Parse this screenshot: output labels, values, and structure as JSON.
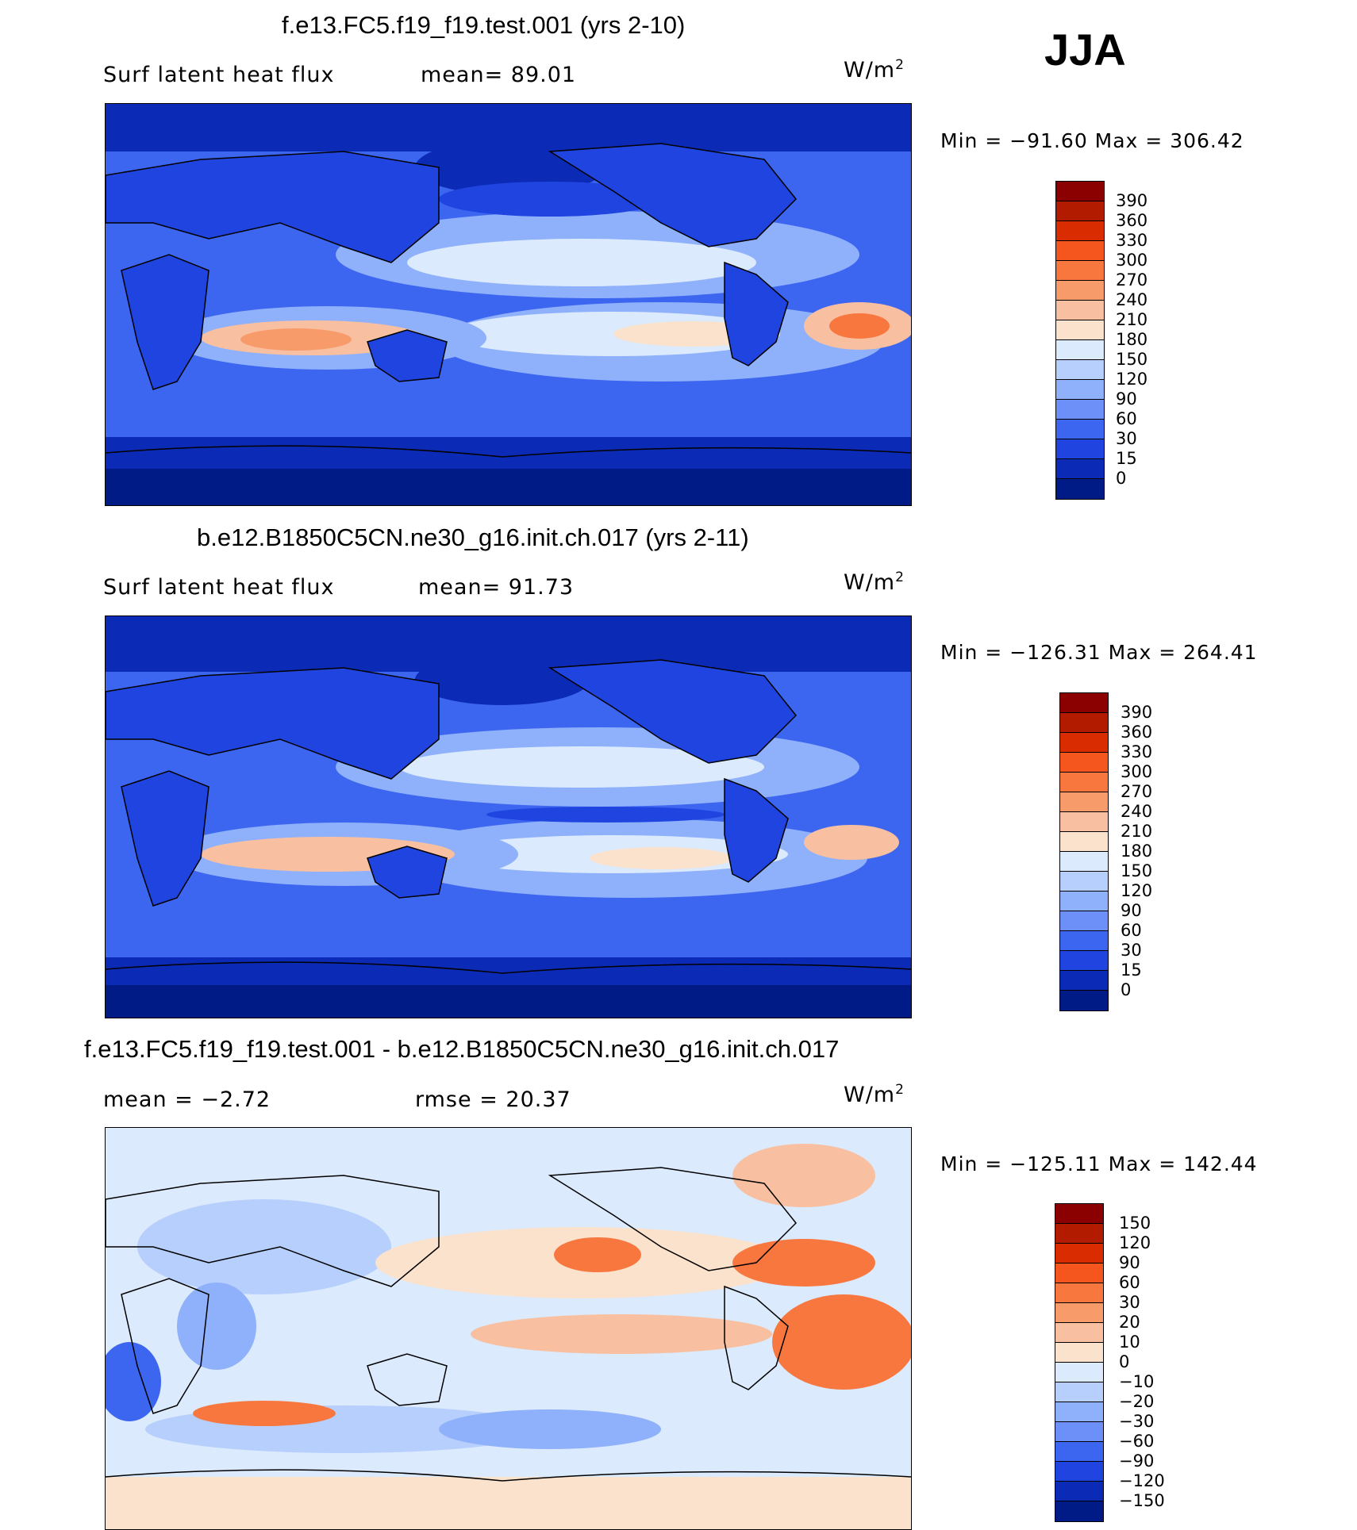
{
  "season": "JJA",
  "panels": [
    {
      "title": "f.e13.FC5.f19_f19.test.001 (yrs 2-10)",
      "variable": "Surf latent heat flux",
      "stat_text": "mean=   89.01",
      "units": "W/m",
      "units_sup": "2",
      "min_max_text": "Min  =  −91.60  Max  =  306.42",
      "colorbar_labels": [
        "390",
        "360",
        "330",
        "300",
        "270",
        "240",
        "210",
        "180",
        "150",
        "120",
        "90",
        "60",
        "30",
        "15",
        "0"
      ],
      "colorbar_colors": [
        "#8b0000",
        "#b31b00",
        "#d92c00",
        "#f4561d",
        "#f7773f",
        "#f79b6b",
        "#f8c0a0",
        "#fbe2cc",
        "#dbeafc",
        "#b7cffc",
        "#8fb0fb",
        "#6c8ff8",
        "#3d66f0",
        "#1f44df",
        "#0b2ab6",
        "#001b85"
      ]
    },
    {
      "title": "b.e12.B1850C5CN.ne30_g16.init.ch.017 (yrs 2-11)",
      "variable": "Surf latent heat flux",
      "stat_text": "mean=   91.73",
      "units": "W/m",
      "units_sup": "2",
      "min_max_text": "Min  =  −126.31  Max  =  264.41",
      "colorbar_labels": [
        "390",
        "360",
        "330",
        "300",
        "270",
        "240",
        "210",
        "180",
        "150",
        "120",
        "90",
        "60",
        "30",
        "15",
        "0"
      ],
      "colorbar_colors": [
        "#8b0000",
        "#b31b00",
        "#d92c00",
        "#f4561d",
        "#f7773f",
        "#f79b6b",
        "#f8c0a0",
        "#fbe2cc",
        "#dbeafc",
        "#b7cffc",
        "#8fb0fb",
        "#6c8ff8",
        "#3d66f0",
        "#1f44df",
        "#0b2ab6",
        "#001b85"
      ]
    },
    {
      "title": "f.e13.FC5.f19_f19.test.001 - b.e12.B1850C5CN.ne30_g16.init.ch.017",
      "stat_text": "mean  =    −2.72",
      "stat2_text": "rmse  =    20.37",
      "units": "W/m",
      "units_sup": "2",
      "min_max_text": "Min  =  −125.11  Max  =  142.44",
      "colorbar_labels": [
        "150",
        "120",
        "90",
        "60",
        "30",
        "20",
        "10",
        "0",
        "−10",
        "−20",
        "−30",
        "−60",
        "−90",
        "−120",
        "−150"
      ],
      "colorbar_colors": [
        "#8b0000",
        "#b31b00",
        "#d92c00",
        "#f4561d",
        "#f7773f",
        "#f79b6b",
        "#f8c0a0",
        "#fbe2cc",
        "#dbeafc",
        "#b7cffc",
        "#8fb0fb",
        "#6c8ff8",
        "#3d66f0",
        "#1f44df",
        "#0b2ab6",
        "#001b85"
      ]
    }
  ]
}
